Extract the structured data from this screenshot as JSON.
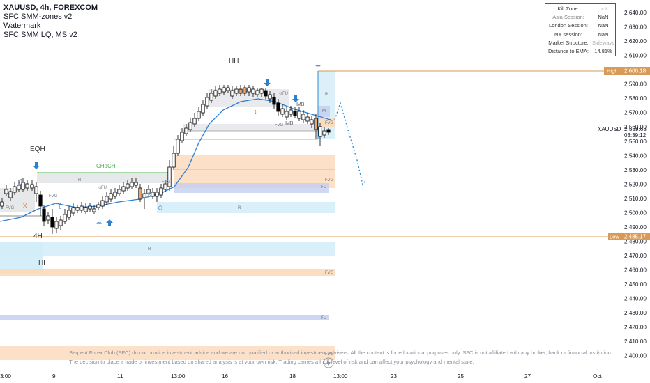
{
  "header": {
    "symbol_line": "XAUUSD, 4h, FOREXCOM",
    "indicators": [
      "SFC SMM-zones v2",
      "Watermark",
      "SFC SMM LQ, MS v2"
    ]
  },
  "info_table": {
    "rows": [
      {
        "label": "Kill Zone:",
        "value": "not"
      },
      {
        "label": "Asia Session:",
        "value": "NaN"
      },
      {
        "label": "London Session:",
        "value": "NaN"
      },
      {
        "label": "NY session:",
        "value": "NaN"
      },
      {
        "label": "Market Structure:",
        "value": "Sideways"
      },
      {
        "label": "Distance to EMA:",
        "value": "14.81%"
      }
    ]
  },
  "price_axis": {
    "ticks": [
      "2,640.00",
      "2,630.00",
      "2,620.00",
      "2,610.00",
      "2,600.00",
      "2,590.00",
      "2,580.00",
      "2,570.00",
      "2,560.00",
      "2,550.00",
      "2,540.00",
      "2,530.00",
      "2,520.00",
      "2,510.00",
      "2,500.00",
      "2,490.00",
      "2,480.00",
      "2,470.00",
      "2,460.00",
      "2,450.00",
      "2,440.00",
      "2,430.00",
      "2,420.00",
      "2,410.00",
      "2,400.00"
    ],
    "high_label": "High",
    "high_value": "2,600.18",
    "low_label": "Low",
    "low_value": "2,485.17",
    "current_symbol": "XAUUSD",
    "current_price": "2,559.68",
    "countdown": "03:39:12"
  },
  "time_axis": {
    "ticks": [
      "3:00",
      "9",
      "11",
      "13:00",
      "16",
      "18",
      "13:00",
      "23",
      "25",
      "27",
      "Oct"
    ]
  },
  "chart_labels": {
    "hh": "HH",
    "hl": "HL",
    "eqh": "EQH",
    "choch": "CHoCH",
    "tf": "4H",
    "fvg": "FVG",
    "r": "R",
    "imb": "IMB",
    "sfu": "-sFU",
    "fu": "-FU",
    "m": "M",
    "x": "X"
  },
  "colors": {
    "up_candle": "#ffffff",
    "down_candle": "#000000",
    "orange_candle": "#f0a36b",
    "ema": "#2f7fd0",
    "level_line": "#d99a55",
    "projection": "#2f8fd0",
    "fvg_zone": "#fbd7b5",
    "r_zone": "#d2ecf8",
    "fu_zone": "#c4cff0",
    "choch": "#4caf50"
  },
  "disclaimer": {
    "line1": "Serpent Forex Club (SFC) do not provide investment advice and we are not qualified or authorised investment advisers. All the content is for educational purposes only. SFC is not affiliated with any broker, bank or financial institution.",
    "line2": "The decision to place a trade or investment based on shared analysis is at your own risk. Trading carries a high level of risk and can affect your psychology and mental state."
  }
}
